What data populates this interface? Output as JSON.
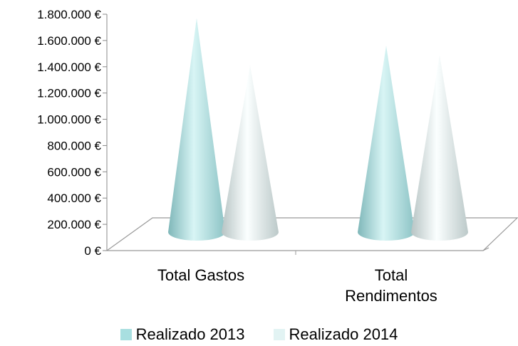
{
  "chart_data": {
    "type": "bar",
    "bar_shape": "3d-cone",
    "categories": [
      "Total Gastos",
      "Total Rendimentos"
    ],
    "category_lines": [
      [
        "Total Gastos"
      ],
      [
        "Total",
        "Rendimentos"
      ]
    ],
    "series": [
      {
        "name": "Realizado 2013",
        "values": [
          1770000,
          1560000
        ],
        "color": "#a8dfe0"
      },
      {
        "name": "Realizado 2014",
        "values": [
          1410000,
          1490000
        ],
        "color": "#e2f3f3"
      }
    ],
    "ylim": [
      0,
      1800000
    ],
    "yticks": [
      0,
      200000,
      400000,
      600000,
      800000,
      1000000,
      1200000,
      1400000,
      1600000,
      1800000
    ],
    "ytick_labels": [
      "0 €",
      "200.000 €",
      "400.000 €",
      "600.000 €",
      "800.000 €",
      "1.000.000 €",
      "1.200.000 €",
      "1.400.000 €",
      "1.600.000 €",
      "1.800.000 €"
    ],
    "grid": false,
    "legend_position": "bottom"
  }
}
